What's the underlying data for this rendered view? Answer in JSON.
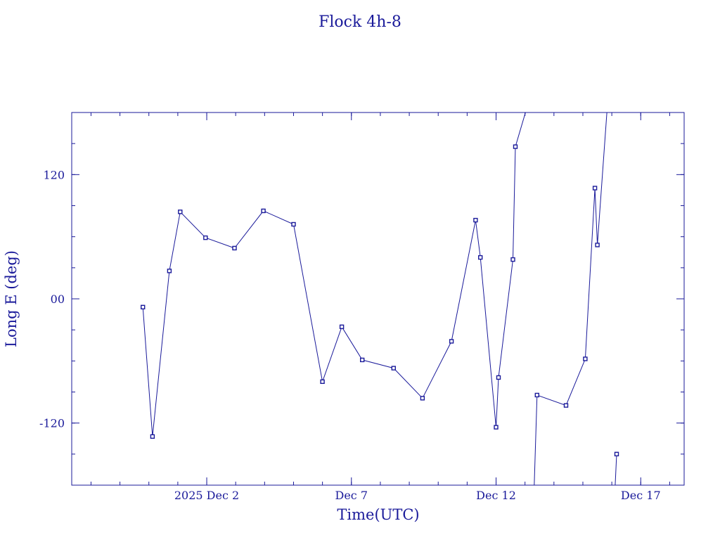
{
  "chart_data": {
    "type": "line",
    "title": "Flock 4h-8",
    "xlabel": "Time(UTC)",
    "ylabel": "Long E (deg)",
    "color": "#1a1a9a",
    "xlim": [
      "2025-11-27T08:00",
      "2025-12-18T12:00"
    ],
    "ylim": [
      -180,
      180
    ],
    "x_ticks": [
      {
        "date": "2025-12-02",
        "label": "2025 Dec  2"
      },
      {
        "date": "2025-12-07",
        "label": "Dec  7"
      },
      {
        "date": "2025-12-12",
        "label": "Dec 12"
      },
      {
        "date": "2025-12-17",
        "label": "Dec 17"
      }
    ],
    "y_ticks": [
      {
        "value": 120,
        "label": "120"
      },
      {
        "value": 0,
        "label": "00"
      },
      {
        "value": -120,
        "label": "-120"
      }
    ],
    "series": [
      {
        "x": [
          "2025-11-29T19:00",
          "2025-11-30T03:00",
          "2025-11-30T17:00",
          "2025-12-01T02:00",
          "2025-12-01T23:00",
          "2025-12-02T23:00",
          "2025-12-03T23:00",
          "2025-12-05T00:00",
          "2025-12-06T00:00",
          "2025-12-06T16:00",
          "2025-12-07T09:00",
          "2025-12-08T11:00",
          "2025-12-09T11:00",
          "2025-12-10T11:00",
          "2025-12-11T07:00",
          "2025-12-11T11:00",
          "2025-12-12T00:00",
          "2025-12-12T02:00",
          "2025-12-12T14:00",
          "2025-12-12T16:00",
          "2025-12-13T09:00"
        ],
        "y": [
          -8,
          -133,
          27,
          84,
          59,
          49,
          85,
          72,
          -80,
          -27,
          -59,
          -67,
          -96,
          -41,
          76,
          40,
          -124,
          -76,
          38,
          147,
          214
        ]
      },
      {
        "x": [
          "2025-12-13T06:00",
          "2025-12-13T10:00",
          "2025-12-14T10:00",
          "2025-12-15T02:00",
          "2025-12-15T10:00",
          "2025-12-15T12:00",
          "2025-12-16T00:00"
        ],
        "y": [
          -241,
          -93,
          -103,
          -58,
          107,
          52,
          246
        ]
      },
      {
        "x": [
          "2025-12-16T01:00",
          "2025-12-16T04:00"
        ],
        "y": [
          -225,
          -150
        ]
      }
    ]
  }
}
